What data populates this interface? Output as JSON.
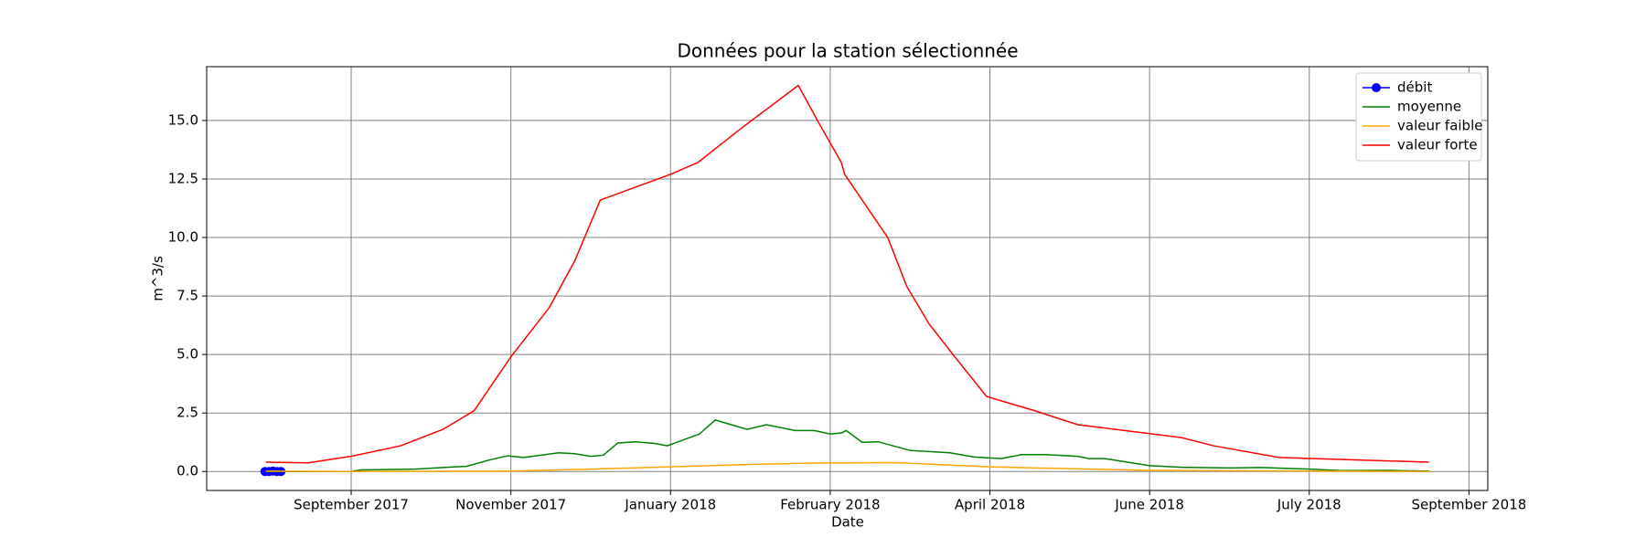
{
  "chart_data": {
    "type": "line",
    "title": "Données pour la station sélectionnée",
    "x_label": "Date",
    "y_label": "m^3/s",
    "xlim": [
      -0.905,
      7.118
    ],
    "ylim": [
      -0.81,
      17.3
    ],
    "xticks": [
      {
        "value": 0,
        "label": "September 2017"
      },
      {
        "value": 1,
        "label": "November 2017"
      },
      {
        "value": 2,
        "label": "January 2018"
      },
      {
        "value": 3,
        "label": "February 2018"
      },
      {
        "value": 4,
        "label": "April 2018"
      },
      {
        "value": 5,
        "label": "June 2018"
      },
      {
        "value": 6,
        "label": "July 2018"
      },
      {
        "value": 7,
        "label": "September 2018"
      }
    ],
    "yticks": [
      {
        "value": 0,
        "label": "0.0"
      },
      2.5,
      {
        "value": 5,
        "label": "5.0"
      },
      7.5,
      {
        "value": 10,
        "label": "10.0"
      },
      12.5,
      {
        "value": 15,
        "label": "15.0"
      }
    ],
    "grid": true,
    "legend": "upper right",
    "series": [
      {
        "name": "débit",
        "color": "#0000ff",
        "marker": "o",
        "x": [
          -0.54,
          -0.515,
          -0.49,
          -0.465,
          -0.44
        ],
        "values": [
          0.0,
          0.0,
          0.02,
          0.0,
          0.0
        ]
      },
      {
        "name": "moyenne",
        "color": "#008000",
        "x": [
          -0.535,
          0,
          0.06,
          0.4,
          0.6,
          0.72,
          0.87,
          0.98,
          1.08,
          1.3,
          1.4,
          1.5,
          1.58,
          1.67,
          1.78,
          1.9,
          1.98,
          2.18,
          2.28,
          2.48,
          2.6,
          2.78,
          2.9,
          3.0,
          3.07,
          3.1,
          3.2,
          3.3,
          3.5,
          3.75,
          3.9,
          4.07,
          4.2,
          4.35,
          4.55,
          4.62,
          4.72,
          5.0,
          5.2,
          5.5,
          5.7,
          6.0,
          6.2,
          6.5,
          6.7,
          6.75
        ],
        "values": [
          0.0,
          0.0,
          0.07,
          0.1,
          0.18,
          0.22,
          0.5,
          0.67,
          0.6,
          0.8,
          0.76,
          0.65,
          0.7,
          1.22,
          1.27,
          1.2,
          1.1,
          1.6,
          2.2,
          1.8,
          2.0,
          1.75,
          1.75,
          1.6,
          1.65,
          1.75,
          1.25,
          1.27,
          0.9,
          0.8,
          0.62,
          0.55,
          0.72,
          0.72,
          0.65,
          0.55,
          0.55,
          0.25,
          0.18,
          0.15,
          0.17,
          0.1,
          0.04,
          0.05,
          0.02,
          0.02
        ]
      },
      {
        "name": "valeur faible",
        "color": "#ffa500",
        "x": [
          -0.535,
          0,
          1.0,
          1.5,
          2.0,
          2.5,
          2.9,
          3.4,
          4.0,
          4.5,
          5.0,
          6.0,
          6.75
        ],
        "values": [
          0.02,
          0.0,
          0.02,
          0.1,
          0.2,
          0.3,
          0.36,
          0.38,
          0.2,
          0.12,
          0.05,
          0.02,
          0.0
        ]
      },
      {
        "name": "valeur forte",
        "color": "#ff0000",
        "x": [
          -0.535,
          -0.27,
          0,
          0.31,
          0.575,
          0.77,
          1.0,
          1.24,
          1.4,
          1.56,
          2.0,
          2.17,
          2.43,
          2.8,
          2.92,
          3.07,
          3.09,
          3.36,
          3.48,
          3.62,
          3.78,
          3.98,
          4.28,
          4.55,
          5.2,
          5.4,
          5.81,
          6.75
        ],
        "values": [
          0.4,
          0.37,
          0.65,
          1.1,
          1.8,
          2.6,
          4.9,
          7.0,
          9.0,
          11.6,
          12.7,
          13.2,
          14.6,
          16.5,
          15.0,
          13.2,
          12.7,
          10.0,
          7.9,
          6.3,
          4.9,
          3.2,
          2.6,
          2.0,
          1.45,
          1.1,
          0.6,
          0.4
        ]
      }
    ]
  }
}
